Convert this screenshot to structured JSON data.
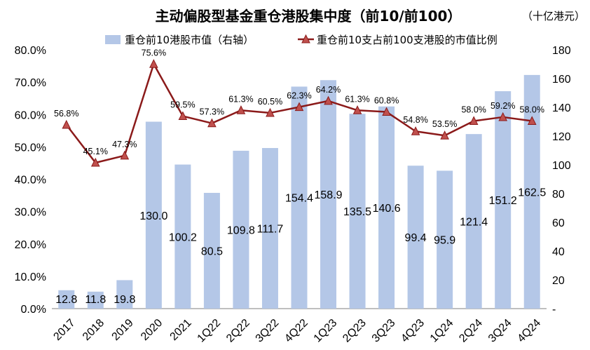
{
  "chart_data": {
    "type": "bar+line",
    "title": "主动偏股型基金重仓港股集中度（前10/前100）",
    "unit_label": "（十亿港元）",
    "categories": [
      "2017",
      "2018",
      "2019",
      "2020",
      "2021",
      "1Q22",
      "2Q22",
      "3Q22",
      "4Q22",
      "1Q23",
      "2Q23",
      "3Q23",
      "4Q23",
      "1Q24",
      "2Q24",
      "3Q24",
      "4Q24"
    ],
    "series": [
      {
        "name": "重仓前10港股市值（右轴）",
        "type": "bar",
        "axis": "right",
        "color": "#b4c7e7",
        "values": [
          12.8,
          11.8,
          19.8,
          130.0,
          100.2,
          80.5,
          109.8,
          111.7,
          154.4,
          158.9,
          135.5,
          140.6,
          99.4,
          95.9,
          121.4,
          151.2,
          162.5
        ],
        "labels": [
          "12.8",
          "11.8",
          "19.8",
          "130.0",
          "100.2",
          "80.5",
          "109.8",
          "111.7",
          "154.4",
          "158.9",
          "135.5",
          "140.6",
          "99.4",
          "95.9",
          "121.4",
          "151.2",
          "162.5"
        ]
      },
      {
        "name": "重仓前10支占前100支港股的市值比例",
        "type": "line",
        "axis": "left",
        "color": "#8b1a1a",
        "marker_color": "#c0504d",
        "values": [
          56.8,
          45.1,
          47.3,
          75.6,
          59.5,
          57.3,
          61.3,
          60.5,
          62.3,
          64.2,
          61.3,
          60.8,
          54.8,
          53.5,
          58.0,
          59.2,
          58.0
        ],
        "labels": [
          "56.8%",
          "45.1%",
          "47.3%",
          "75.6%",
          "59.5%",
          "57.3%",
          "61.3%",
          "60.5%",
          "62.3%",
          "64.2%",
          "61.3%",
          "60.8%",
          "54.8%",
          "53.5%",
          "58.0%",
          "59.2%",
          "58.0%"
        ]
      }
    ],
    "left_axis": {
      "ylim": [
        0,
        80
      ],
      "ticks": [
        0,
        10,
        20,
        30,
        40,
        50,
        60,
        70,
        80
      ],
      "tick_labels": [
        "0.0%",
        "10.0%",
        "20.0%",
        "30.0%",
        "40.0%",
        "50.0%",
        "60.0%",
        "70.0%",
        "80.0%"
      ]
    },
    "right_axis": {
      "ylim": [
        0,
        180
      ],
      "ticks": [
        0,
        20,
        40,
        60,
        80,
        100,
        120,
        140,
        160,
        180
      ],
      "tick_labels": [
        "-",
        "20",
        "40",
        "60",
        "80",
        "100",
        "120",
        "140",
        "160",
        "180"
      ]
    },
    "grid": false,
    "legend": "top"
  }
}
